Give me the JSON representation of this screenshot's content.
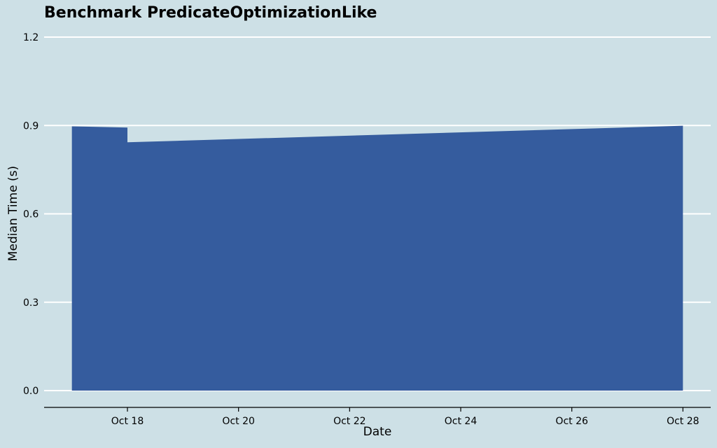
{
  "chart_data": {
    "type": "area",
    "title": "Benchmark PredicateOptimizationLike",
    "xlabel": "Date",
    "ylabel": "Median Time (s)",
    "x": [
      "2023-10-17",
      "2023-10-18",
      "2023-10-18",
      "2023-10-28"
    ],
    "y": [
      0.897,
      0.893,
      0.843,
      0.899
    ],
    "xlim": [
      "2023-10-16T12:00",
      "2023-10-28T12:00"
    ],
    "ylim": [
      0,
      1.2
    ],
    "yticks": [
      0.0,
      0.3,
      0.6,
      0.9,
      1.2
    ],
    "ytick_labels": [
      "0.0",
      "0.3",
      "0.6",
      "0.9",
      "1.2"
    ],
    "xticks": [
      "2023-10-18",
      "2023-10-20",
      "2023-10-22",
      "2023-10-24",
      "2023-10-26",
      "2023-10-28"
    ],
    "xtick_labels": [
      "Oct 18",
      "Oct 20",
      "Oct 22",
      "Oct 24",
      "Oct 26",
      "Oct 28"
    ],
    "grid": "horizontal",
    "colors": {
      "fill": "#355c9e",
      "background": "#cde0e6",
      "grid": "#ffffff",
      "axis": "#000000"
    }
  }
}
